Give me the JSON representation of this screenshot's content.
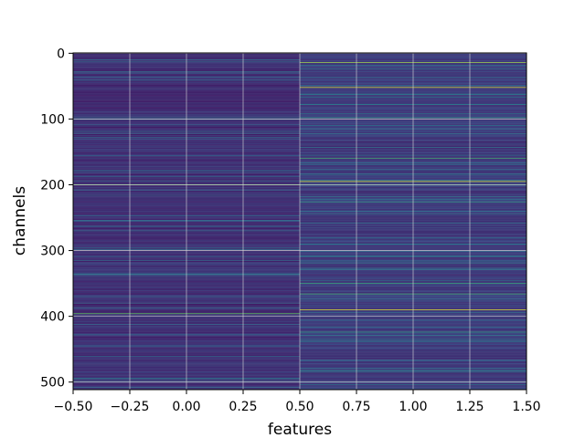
{
  "chart_data": {
    "type": "heatmap",
    "colormap": "viridis",
    "xlabel": "features",
    "ylabel": "channels",
    "xlim": [
      -0.5,
      1.5
    ],
    "ylim": [
      511.5,
      -0.5
    ],
    "n_rows": 512,
    "n_cols": 2,
    "grid": true,
    "x_ticks": [
      -0.5,
      -0.25,
      0.0,
      0.25,
      0.5,
      0.75,
      1.0,
      1.25,
      1.5
    ],
    "x_tick_labels": [
      "−0.50",
      "−0.25",
      "0.00",
      "0.25",
      "0.50",
      "0.75",
      "1.00",
      "1.25",
      "1.50"
    ],
    "y_ticks": [
      0,
      100,
      200,
      300,
      400,
      500
    ],
    "y_tick_labels": [
      "0",
      "100",
      "200",
      "300",
      "400",
      "500"
    ],
    "columns": [
      {
        "feature": 0,
        "base_level": 0.08,
        "highlights": [
          {
            "channel": 28,
            "level": 0.35
          },
          {
            "channel": 98,
            "level": 0.4
          },
          {
            "channel": 130,
            "level": 0.3
          },
          {
            "channel": 188,
            "level": 0.35
          },
          {
            "channel": 200,
            "level": 0.75
          },
          {
            "channel": 270,
            "level": 0.35
          },
          {
            "channel": 298,
            "level": 0.4
          },
          {
            "channel": 336,
            "level": 0.35
          },
          {
            "channel": 396,
            "level": 0.75
          },
          {
            "channel": 412,
            "level": 0.35
          },
          {
            "channel": 494,
            "level": 0.4
          }
        ]
      },
      {
        "feature": 1,
        "base_level": 0.12,
        "highlights": [
          {
            "channel": 14,
            "level": 0.85
          },
          {
            "channel": 52,
            "level": 0.95
          },
          {
            "channel": 78,
            "level": 0.45
          },
          {
            "channel": 98,
            "level": 0.55
          },
          {
            "channel": 160,
            "level": 0.65
          },
          {
            "channel": 184,
            "level": 0.45
          },
          {
            "channel": 195,
            "level": 0.95
          },
          {
            "channel": 200,
            "level": 0.6
          },
          {
            "channel": 226,
            "level": 0.55
          },
          {
            "channel": 290,
            "level": 0.45
          },
          {
            "channel": 350,
            "level": 0.6
          },
          {
            "channel": 366,
            "level": 0.65
          },
          {
            "channel": 390,
            "level": 0.95
          },
          {
            "channel": 424,
            "level": 0.55
          },
          {
            "channel": 438,
            "level": 0.45
          },
          {
            "channel": 500,
            "level": 0.4
          }
        ]
      }
    ]
  }
}
